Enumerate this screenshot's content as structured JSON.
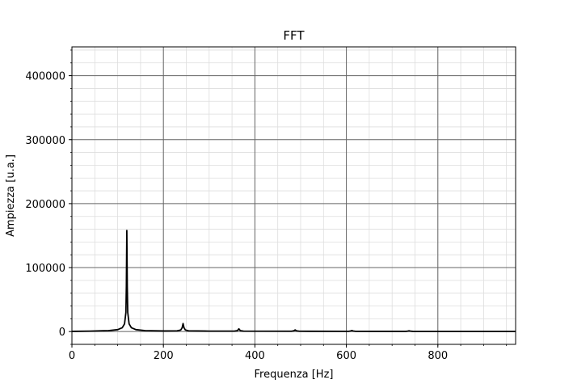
{
  "chart_data": {
    "type": "line",
    "title": "FFT",
    "xlabel": "Frequenza [Hz]",
    "ylabel": "Ampiezza [u.a.]",
    "xlim": [
      0,
      970
    ],
    "ylim": [
      -20000,
      445000
    ],
    "x_major_ticks": [
      0,
      200,
      400,
      600,
      800
    ],
    "x_tick_labels": [
      "0",
      "200",
      "400",
      "600",
      "800"
    ],
    "y_major_ticks": [
      0,
      100000,
      200000,
      300000,
      400000
    ],
    "y_tick_labels": [
      "0",
      "100000",
      "200000",
      "300000",
      "400000"
    ],
    "x_minor_step": 50,
    "y_minor_step": 20000,
    "grid": true,
    "grid_minor": true,
    "colors": {
      "line": "#000000",
      "major_grid": "#666666",
      "minor_grid": "#dddddd"
    },
    "series": [
      {
        "values": [
          [
            0,
            300
          ],
          [
            40,
            700
          ],
          [
            80,
            1500
          ],
          [
            100,
            3000
          ],
          [
            110,
            6000
          ],
          [
            115,
            12000
          ],
          [
            118,
            30000
          ],
          [
            119,
            70000
          ],
          [
            120,
            158000
          ],
          [
            121,
            70000
          ],
          [
            122,
            30000
          ],
          [
            125,
            12000
          ],
          [
            130,
            6000
          ],
          [
            140,
            3000
          ],
          [
            160,
            1500
          ],
          [
            200,
            900
          ],
          [
            230,
            1200
          ],
          [
            238,
            2500
          ],
          [
            241,
            6000
          ],
          [
            243,
            12500
          ],
          [
            245,
            6000
          ],
          [
            248,
            2500
          ],
          [
            255,
            1200
          ],
          [
            300,
            700
          ],
          [
            355,
            700
          ],
          [
            362,
            1500
          ],
          [
            365,
            4200
          ],
          [
            368,
            1500
          ],
          [
            375,
            700
          ],
          [
            480,
            500
          ],
          [
            485,
            1200
          ],
          [
            488,
            2500
          ],
          [
            491,
            1200
          ],
          [
            497,
            500
          ],
          [
            605,
            400
          ],
          [
            609,
            900
          ],
          [
            612,
            1600
          ],
          [
            615,
            900
          ],
          [
            620,
            400
          ],
          [
            730,
            300
          ],
          [
            734,
            700
          ],
          [
            737,
            1200
          ],
          [
            740,
            700
          ],
          [
            745,
            300
          ],
          [
            850,
            250
          ],
          [
            970,
            200
          ]
        ]
      }
    ]
  }
}
